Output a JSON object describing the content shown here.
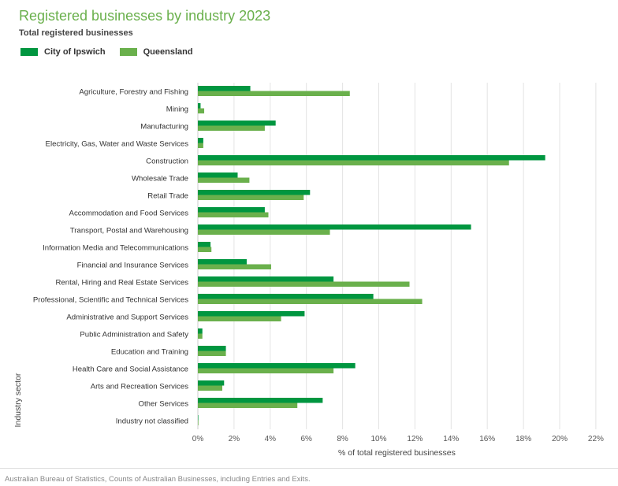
{
  "chart_data": {
    "type": "bar",
    "orientation": "horizontal",
    "title": "Registered businesses by industry 2023",
    "subtitle": "Total registered businesses",
    "xlabel": "% of total registered businesses",
    "ylabel": "Industry sector",
    "xlim": [
      0,
      22
    ],
    "xticks": [
      "0%",
      "2%",
      "4%",
      "6%",
      "8%",
      "10%",
      "12%",
      "14%",
      "16%",
      "18%",
      "20%",
      "22%"
    ],
    "grid": true,
    "legend_position": "top-left",
    "categories": [
      "Agriculture, Forestry and Fishing",
      "Mining",
      "Manufacturing",
      "Electricity, Gas, Water and Waste Services",
      "Construction",
      "Wholesale Trade",
      "Retail Trade",
      "Accommodation and Food Services",
      "Transport, Postal and Warehousing",
      "Information Media and Telecommunications",
      "Financial and Insurance Services",
      "Rental, Hiring and Real Estate Services",
      "Professional, Scientific and Technical Services",
      "Administrative and Support Services",
      "Public Administration and Safety",
      "Education and Training",
      "Health Care and Social Assistance",
      "Arts and Recreation Services",
      "Other Services",
      "Industry not classified"
    ],
    "series": [
      {
        "name": "City of Ipswich",
        "color": "#009640",
        "values": [
          2.9,
          0.15,
          4.3,
          0.3,
          19.2,
          2.2,
          6.2,
          3.7,
          15.1,
          0.7,
          2.7,
          7.5,
          9.7,
          5.9,
          0.25,
          1.55,
          8.7,
          1.45,
          6.9,
          0.02
        ]
      },
      {
        "name": "Queensland",
        "color": "#6ab04c",
        "values": [
          8.4,
          0.35,
          3.7,
          0.3,
          17.2,
          2.85,
          5.85,
          3.9,
          7.3,
          0.75,
          4.05,
          11.7,
          12.4,
          4.6,
          0.25,
          1.55,
          7.5,
          1.35,
          5.5,
          0.03
        ]
      }
    ]
  },
  "source": "Australian Bureau of Statistics, Counts of Australian Businesses, including Entries and Exits."
}
